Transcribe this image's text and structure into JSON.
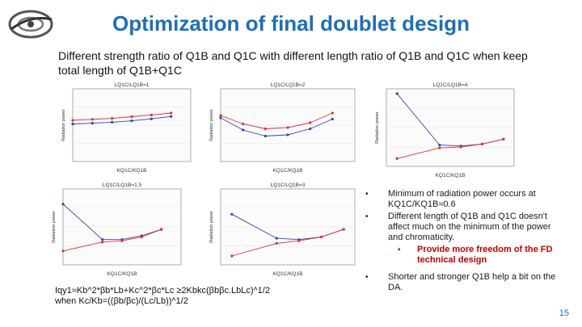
{
  "title": "Optimization of final doublet design",
  "subtitle": "Different strength ratio of Q1B and Q1C with different length ratio of Q1B and Q1C when keep total length of Q1B+Q1C",
  "charts": [
    {
      "header": "LQ1C/LQ1B=1",
      "xlabel": "KQ1C/KQ1B",
      "ylabel": "Radiation power",
      "xlim": [
        0.4,
        1.6
      ],
      "ylim": [
        0,
        3
      ],
      "series": [
        {
          "color": "#e03030",
          "x": [
            0.4,
            0.6,
            0.8,
            1.0,
            1.2,
            1.4
          ],
          "y": [
            1.7,
            1.74,
            1.78,
            1.85,
            1.92,
            2.0
          ]
        },
        {
          "color": "#3040c0",
          "x": [
            0.4,
            0.6,
            0.8,
            1.0,
            1.2,
            1.4
          ],
          "y": [
            1.55,
            1.58,
            1.62,
            1.68,
            1.76,
            1.86
          ]
        }
      ]
    },
    {
      "header": "LQ1C/LQ1B=2",
      "xlabel": "KQ1C/KQ1B",
      "ylabel": "Radiation power",
      "xlim": [
        0.2,
        1.4
      ],
      "ylim": [
        0,
        3
      ],
      "series": [
        {
          "color": "#e03030",
          "x": [
            0.2,
            0.4,
            0.6,
            0.8,
            1.0,
            1.2
          ],
          "y": [
            1.9,
            1.55,
            1.35,
            1.4,
            1.6,
            2.0
          ]
        },
        {
          "color": "#3040c0",
          "x": [
            0.2,
            0.4,
            0.6,
            0.8,
            1.0,
            1.2
          ],
          "y": [
            1.8,
            1.3,
            1.05,
            1.1,
            1.35,
            1.75
          ]
        }
      ]
    },
    {
      "header": "LQ1C/LQ1B=4",
      "xlabel": "KQ1C/KQ1B",
      "ylabel": "Radiation power",
      "xlim": [
        0.1,
        1.3
      ],
      "ylim": [
        0,
        4
      ],
      "series": [
        {
          "color": "#3040c0",
          "x": [
            0.2,
            0.6,
            0.8,
            1.0,
            1.2
          ],
          "y": [
            3.75,
            1.1,
            1.05,
            1.15,
            1.4
          ]
        },
        {
          "color": "#e03030",
          "x": [
            0.2,
            0.6,
            0.8,
            1.0,
            1.2
          ],
          "y": [
            0.4,
            0.95,
            1.0,
            1.15,
            1.4
          ]
        }
      ]
    },
    {
      "header": "LQ1C/LQ1B=1.5",
      "xlabel": "KQ1C/KQ1B",
      "ylabel": "Radiation power",
      "xlim": [
        0.2,
        1.4
      ],
      "ylim": [
        0,
        3
      ],
      "series": [
        {
          "color": "#3040c0",
          "x": [
            0.2,
            0.6,
            0.8,
            1.0,
            1.2
          ],
          "y": [
            2.4,
            1.0,
            1.0,
            1.15,
            1.4
          ]
        },
        {
          "color": "#e03030",
          "x": [
            0.2,
            0.6,
            0.8,
            1.0,
            1.2
          ],
          "y": [
            0.55,
            0.9,
            0.95,
            1.1,
            1.4
          ]
        }
      ]
    },
    {
      "header": "LQ1C/LQ1B=3",
      "xlabel": "KQ1C/KQ1B",
      "ylabel": "Radiation power",
      "xlim": [
        0.1,
        1.3
      ],
      "ylim": [
        0,
        3
      ],
      "series": [
        {
          "color": "#3040c0",
          "x": [
            0.2,
            0.6,
            0.8,
            1.0,
            1.2
          ],
          "y": [
            2.0,
            1.05,
            1.0,
            1.1,
            1.4
          ]
        },
        {
          "color": "#e03030",
          "x": [
            0.2,
            0.6,
            0.8,
            1.0,
            1.2
          ],
          "y": [
            0.35,
            0.85,
            0.95,
            1.1,
            1.4
          ]
        }
      ]
    }
  ],
  "formula_line1": "Iqy1≈Kb^2*βb*Lb+Kc^2*βc*Lc ≥2Kbkc(βbβc.LbLc)^1/2",
  "formula_line2": "when Kc/Kb=((βb/βc)/(Lc/Lb))^1/2",
  "bullets": {
    "b1": "Minimum of radiation power occurs at KQ1C/KQ1B≈0.6",
    "b2": "Different length of Q1B and Q1C doesn't affect much on the minimum of the power and chromaticity.",
    "b2_sub": "Provide more freedom of the FD technical design",
    "b3": "Shorter and stronger Q1B help a bit on the DA."
  },
  "page_number": "15"
}
